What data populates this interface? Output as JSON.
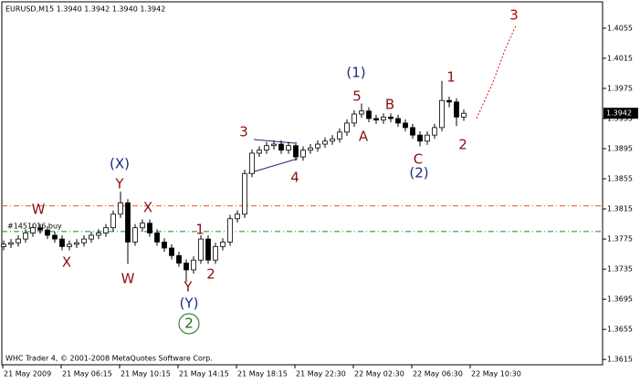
{
  "chart_data": {
    "type": "candlestick",
    "title": "EURUSD,M15  1.3940 1.3942 1.3940 1.3942",
    "footer": "WHC Trader 4, © 2001-2008 MetaQuotes Software Corp.",
    "x_labels": [
      "21 May 2009",
      "21 May 06:15",
      "21 May 10:15",
      "21 May 14:15",
      "21 May 18:15",
      "21 May 22:30",
      "22 May 02:30",
      "22 May 06:30",
      "22 May 10:30"
    ],
    "open": [
      1.3765,
      1.3768,
      1.377,
      1.3775,
      1.3783,
      1.379,
      1.3787,
      1.378,
      1.3775,
      1.3765,
      1.3768,
      1.377,
      1.3775,
      1.378,
      1.3783,
      1.379,
      1.3808,
      1.3823,
      1.3771,
      1.379,
      1.3796,
      1.3783,
      1.3771,
      1.3763,
      1.3753,
      1.3743,
      1.3734,
      1.3747,
      1.3775,
      1.3747,
      1.3765,
      1.3771,
      1.3802,
      1.3808,
      1.3862,
      1.3889,
      1.3893,
      1.3899,
      1.3901,
      1.3893,
      1.3899,
      1.3884,
      1.3893,
      1.3896,
      1.3901,
      1.3905,
      1.3908,
      1.3917,
      1.3929,
      1.3941,
      1.3945,
      1.3935,
      1.3933,
      1.3937,
      1.3935,
      1.3929,
      1.3923,
      1.3913,
      1.3905,
      1.3913,
      1.3923,
      1.3959,
      1.3957,
      1.3937
    ],
    "high": [
      1.3773,
      1.3775,
      1.378,
      1.3788,
      1.3795,
      1.3795,
      1.3792,
      1.3785,
      1.378,
      1.3773,
      1.3775,
      1.378,
      1.3785,
      1.3788,
      1.3795,
      1.3813,
      1.3838,
      1.3828,
      1.3795,
      1.3801,
      1.3801,
      1.3788,
      1.3776,
      1.3768,
      1.3758,
      1.3748,
      1.3752,
      1.378,
      1.378,
      1.377,
      1.3776,
      1.3807,
      1.3813,
      1.3867,
      1.3894,
      1.3898,
      1.3904,
      1.3906,
      1.3906,
      1.3904,
      1.3904,
      1.3898,
      1.3901,
      1.3906,
      1.391,
      1.3913,
      1.3922,
      1.3934,
      1.3946,
      1.3955,
      1.395,
      1.394,
      1.3942,
      1.3942,
      1.394,
      1.3934,
      1.3928,
      1.3918,
      1.3918,
      1.3928,
      1.3985,
      1.3964,
      1.3962,
      1.3947
    ],
    "low": [
      1.376,
      1.3763,
      1.3765,
      1.377,
      1.3778,
      1.3782,
      1.3775,
      1.377,
      1.376,
      1.376,
      1.3763,
      1.3765,
      1.377,
      1.3775,
      1.3778,
      1.3785,
      1.3803,
      1.3742,
      1.3766,
      1.3785,
      1.3778,
      1.3766,
      1.3758,
      1.3748,
      1.3738,
      1.3718,
      1.3729,
      1.3742,
      1.3742,
      1.3742,
      1.376,
      1.3766,
      1.3797,
      1.3803,
      1.3857,
      1.3884,
      1.3888,
      1.3894,
      1.3888,
      1.3888,
      1.3879,
      1.3879,
      1.3888,
      1.3891,
      1.3896,
      1.39,
      1.3903,
      1.3912,
      1.3924,
      1.3936,
      1.393,
      1.3928,
      1.3928,
      1.393,
      1.3924,
      1.3918,
      1.3908,
      1.3898,
      1.39,
      1.3908,
      1.3918,
      1.395,
      1.3925,
      1.3932
    ],
    "close": [
      1.3768,
      1.377,
      1.3775,
      1.3783,
      1.379,
      1.3787,
      1.378,
      1.3775,
      1.3765,
      1.3768,
      1.377,
      1.3775,
      1.378,
      1.3783,
      1.379,
      1.3808,
      1.3823,
      1.3771,
      1.379,
      1.3796,
      1.3783,
      1.3771,
      1.3763,
      1.3753,
      1.3743,
      1.3734,
      1.3747,
      1.3775,
      1.3747,
      1.3765,
      1.3771,
      1.3802,
      1.3808,
      1.3862,
      1.3889,
      1.3893,
      1.3899,
      1.3901,
      1.3893,
      1.3899,
      1.3884,
      1.3893,
      1.3896,
      1.3901,
      1.3905,
      1.3908,
      1.3917,
      1.3929,
      1.3941,
      1.3945,
      1.3935,
      1.3933,
      1.3937,
      1.3935,
      1.3929,
      1.3923,
      1.3913,
      1.3905,
      1.3913,
      1.3923,
      1.3959,
      1.3957,
      1.3937,
      1.3942
    ],
    "ylim": [
      1.3608,
      1.409
    ],
    "yticks": [
      1.4055,
      1.4015,
      1.3975,
      1.3935,
      1.3895,
      1.3855,
      1.3815,
      1.3775,
      1.3735,
      1.3695,
      1.3655,
      1.3615
    ],
    "levels": [
      {
        "value": 1.3819,
        "color": "#e8501a"
      },
      {
        "value": 1.3785,
        "color": "#1a8a1a",
        "label": "#1451016 buy"
      }
    ],
    "annotations": [
      {
        "text": "3",
        "color": "#c00000"
      },
      {
        "text": "(1)",
        "color": "#1c2a7a"
      },
      {
        "text": "5",
        "color": "#8b1010"
      },
      {
        "text": "A",
        "color": "#8b1010"
      },
      {
        "text": "B",
        "color": "#8b1010"
      },
      {
        "text": "C",
        "color": "#8b1010"
      },
      {
        "text": "(2)",
        "color": "#1c2a7a"
      },
      {
        "text": "1",
        "color": "#8b1010"
      },
      {
        "text": "2",
        "color": "#8b1010"
      },
      {
        "text": "3",
        "color": "#8b1010"
      },
      {
        "text": "4",
        "color": "#8b1010"
      },
      {
        "text": "W",
        "color": "#8b1010"
      },
      {
        "text": "X",
        "color": "#8b1010"
      },
      {
        "text": "(X)",
        "color": "#1c2a7a"
      },
      {
        "text": "Y",
        "color": "#8b1010"
      },
      {
        "text": "W",
        "color": "#8b1010"
      },
      {
        "text": "X",
        "color": "#8b1010"
      },
      {
        "text": "1",
        "color": "#8b1010"
      },
      {
        "text": "2",
        "color": "#8b1010"
      },
      {
        "text": "Y",
        "color": "#8b1010"
      },
      {
        "text": "(Y)",
        "color": "#1c2a7a"
      },
      {
        "text": "2",
        "color": "#1a6a1a"
      }
    ]
  }
}
